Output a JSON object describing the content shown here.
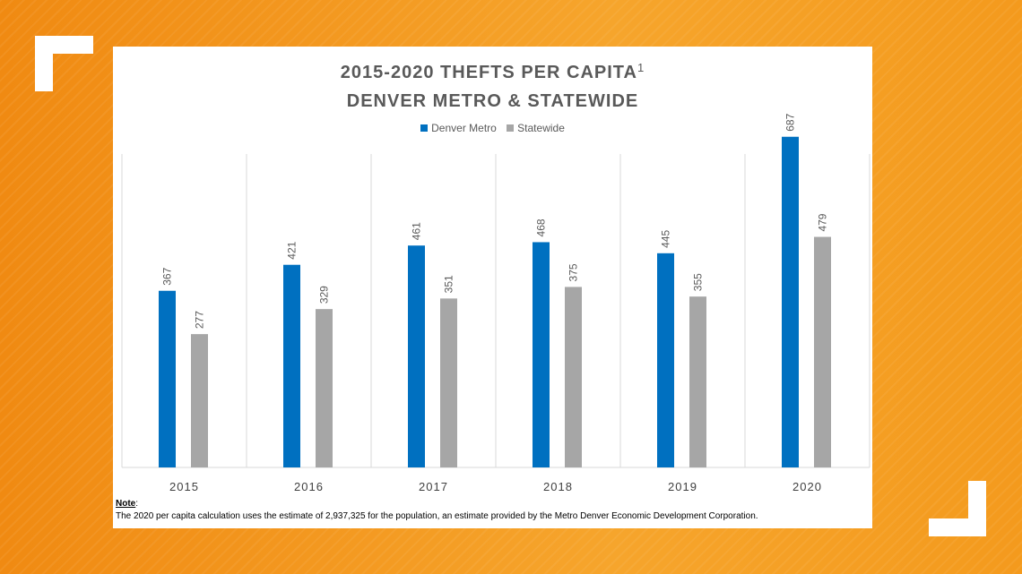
{
  "chart_data": {
    "type": "bar",
    "title_line1": "2015-2020 THEFTS PER CAPITA",
    "title_superscript": "1",
    "title_line2": "DENVER METRO & STATEWIDE",
    "categories": [
      "2015",
      "2016",
      "2017",
      "2018",
      "2019",
      "2020"
    ],
    "series": [
      {
        "name": "Denver Metro",
        "values": [
          367,
          421,
          461,
          468,
          445,
          687
        ],
        "color": "#0070C0"
      },
      {
        "name": "Statewide",
        "values": [
          277,
          329,
          351,
          375,
          355,
          479
        ],
        "color": "#A6A6A6"
      }
    ],
    "ylim": [
      0,
      800
    ],
    "gridlines": "vertical",
    "legend_position": "top-center"
  },
  "note": {
    "heading": "Note",
    "text": "The 2020 per capita calculation uses the estimate of 2,937,325 for the population, an estimate provided by the Metro Denver Economic Development Corporation."
  },
  "colors": {
    "background": "#F39A1E",
    "panel": "#FFFFFF",
    "text": "#595959"
  }
}
